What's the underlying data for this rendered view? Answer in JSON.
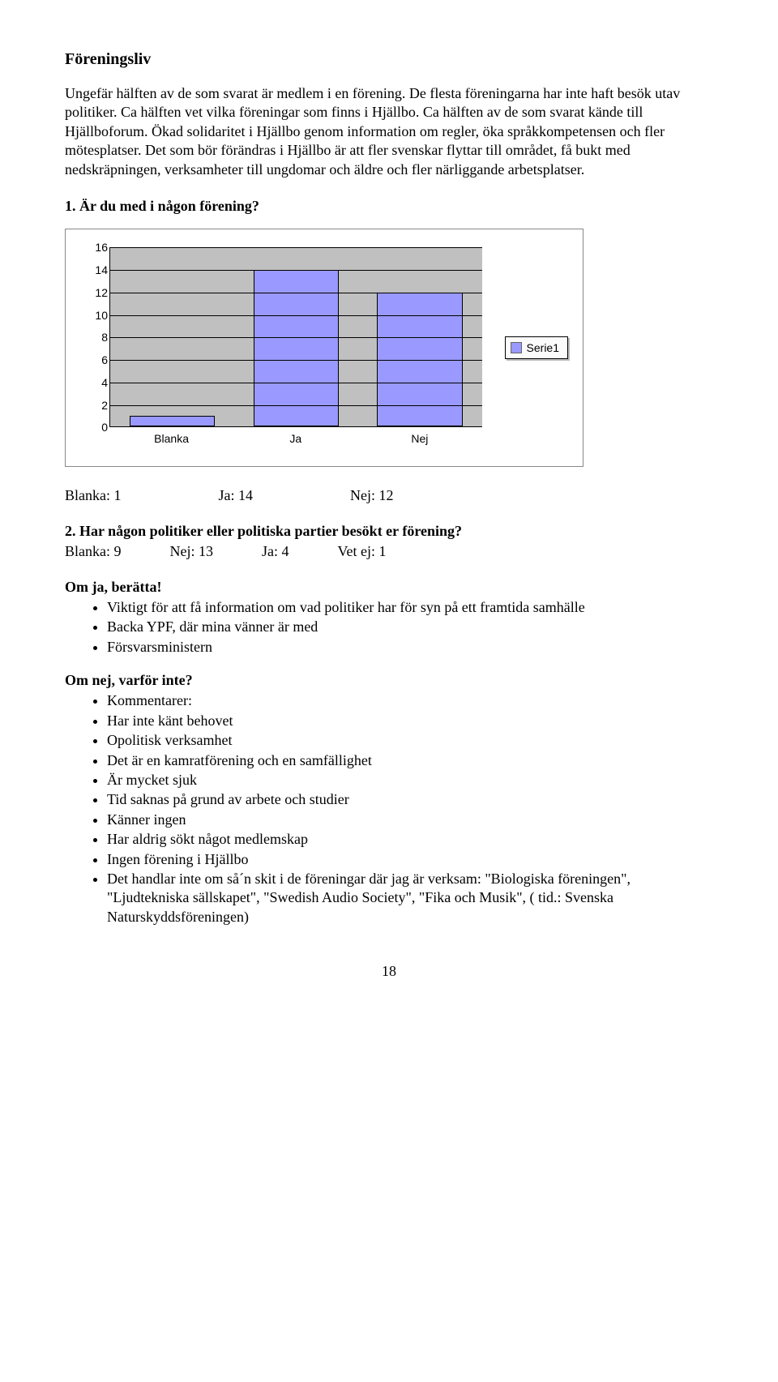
{
  "section_title": "Föreningsliv",
  "intro_paragraph": "Ungefär hälften av de som svarat är medlem i en förening. De flesta föreningarna har inte haft besök utav politiker. Ca hälften vet vilka föreningar som finns i Hjällbo. Ca hälften av de som svarat kände till Hjällboforum. Ökad solidaritet i Hjällbo genom information om regler, öka språkkompetensen och fler mötesplatser. Det som bör förändras i Hjällbo är att fler svenskar flyttar till området, få bukt med nedskräpningen, verksamheter till ungdomar och äldre och fler närliggande arbetsplatser.",
  "q1": {
    "heading": "1. Är du med i någon förening?",
    "chart": {
      "type": "bar",
      "categories": [
        "Blanka",
        "Ja",
        "Nej"
      ],
      "values": [
        1,
        14,
        12
      ],
      "bar_color": "#9999ff",
      "plot_bg": "#c0c0c0",
      "border_color": "#000000",
      "ylim_max": 16,
      "ytick_step": 2,
      "legend_label": "Serie1",
      "tick_font_family": "Arial",
      "tick_font_size": 14
    },
    "stats": [
      {
        "label": "Blanka: 1"
      },
      {
        "label": "Ja: 14"
      },
      {
        "label": "Nej: 12"
      }
    ]
  },
  "q2": {
    "heading": "2. Har någon politiker eller politiska partier besökt er förening?",
    "stats": [
      {
        "label": "Blanka: 9"
      },
      {
        "label": "Nej: 13"
      },
      {
        "label": "Ja: 4"
      },
      {
        "label": "Vet ej: 1"
      }
    ]
  },
  "omja": {
    "heading": "Om ja, berätta!",
    "items": [
      "Viktigt för att få information om vad politiker har för syn på ett framtida samhälle",
      "Backa YPF, där mina vänner är med",
      "Försvarsministern"
    ]
  },
  "omnej": {
    "heading": "Om nej, varför inte?",
    "items": [
      "Kommentarer:",
      "Har inte känt behovet",
      "Opolitisk verksamhet",
      "Det är en kamratförening och en samfällighet",
      "Är mycket sjuk",
      "Tid saknas på grund av arbete och studier",
      "Känner ingen",
      "Har aldrig sökt något medlemskap",
      "Ingen förening i Hjällbo",
      "Det handlar inte om så´n skit i de föreningar där jag är verksam: \"Biologiska föreningen\", \"Ljudtekniska sällskapet\", \"Swedish Audio Society\", \"Fika och Musik\", ( tid.: Svenska Naturskyddsföreningen)"
    ]
  },
  "page_number": "18"
}
